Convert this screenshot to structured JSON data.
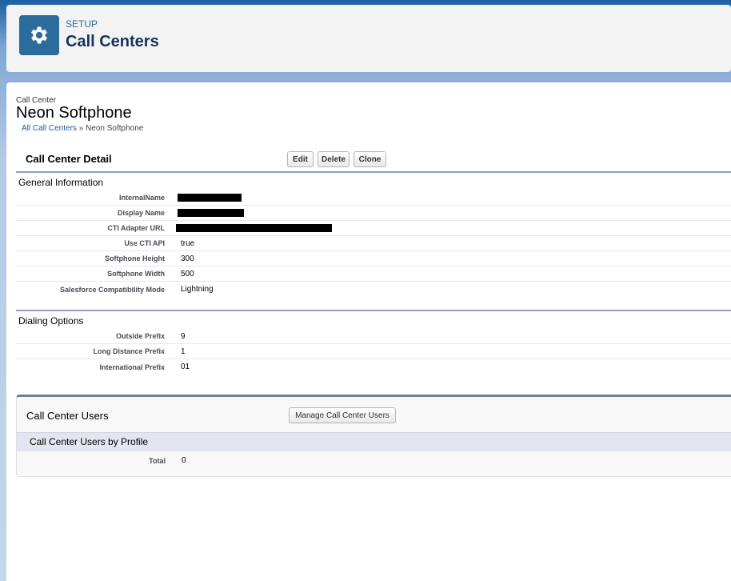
{
  "header": {
    "eyebrow": "SETUP",
    "title": "Call Centers",
    "icon": "gear-icon"
  },
  "record": {
    "type_label": "Call Center",
    "name": "Neon Softphone"
  },
  "breadcrumb": {
    "link": "All Call Centers",
    "separator": "»",
    "current": "Neon Softphone"
  },
  "detail": {
    "title": "Call Center Detail",
    "buttons": [
      "Edit",
      "Delete",
      "Clone"
    ]
  },
  "general": {
    "heading": "General Information",
    "fields": [
      {
        "label": "InternalName",
        "value": "",
        "redacted": true
      },
      {
        "label": "Display Name",
        "value": "",
        "redacted": true
      },
      {
        "label": "CTI Adapter URL",
        "value": "",
        "redacted": true
      },
      {
        "label": "Use CTI API",
        "value": "true"
      },
      {
        "label": "Softphone Height",
        "value": "300"
      },
      {
        "label": "Softphone Width",
        "value": "500"
      },
      {
        "label": "Salesforce Compatibility Mode",
        "value": "Lightning"
      }
    ]
  },
  "dialing": {
    "heading": "Dialing Options",
    "fields": [
      {
        "label": "Outside Prefix",
        "value": "9"
      },
      {
        "label": "Long Distance Prefix",
        "value": "1"
      },
      {
        "label": "International Prefix",
        "value": "01"
      }
    ]
  },
  "users": {
    "title": "Call Center Users",
    "manage_button": "Manage Call Center Users",
    "subheading": "Call Center Users by Profile",
    "total_label": "Total",
    "total_value": "0"
  },
  "colors": {
    "brand": "#2b6c9d",
    "link": "#1a5a9a"
  }
}
